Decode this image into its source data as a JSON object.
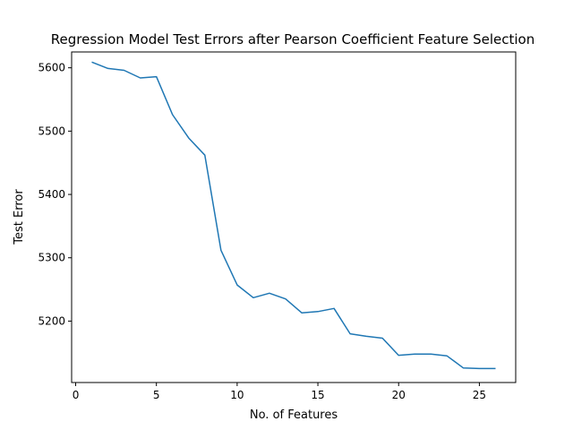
{
  "chart_data": {
    "type": "line",
    "title": "Regression Model Test Errors after Pearson Coefficient Feature Selection",
    "xlabel": "No. of Features",
    "ylabel": "Test Error",
    "xlim": [
      -0.25,
      27.25
    ],
    "ylim": [
      5103,
      5625
    ],
    "xticks": [
      0,
      5,
      10,
      15,
      20,
      25
    ],
    "yticks": [
      5200,
      5300,
      5400,
      5500,
      5600
    ],
    "grid": false,
    "colors": {
      "line": "#1f77b4",
      "axes": "#000000"
    },
    "series": [
      {
        "x": [
          1,
          2,
          3,
          4,
          5,
          6,
          7,
          8,
          9,
          10,
          11,
          12,
          13,
          14,
          15,
          16,
          17,
          18,
          19,
          20,
          21,
          22,
          23,
          24,
          25,
          26
        ],
        "values": [
          5609,
          5599,
          5596,
          5584,
          5586,
          5526,
          5489,
          5462,
          5312,
          5257,
          5237,
          5244,
          5235,
          5213,
          5215,
          5220,
          5180,
          5176,
          5173,
          5146,
          5148,
          5148,
          5145,
          5126,
          5125,
          5125
        ]
      }
    ]
  }
}
